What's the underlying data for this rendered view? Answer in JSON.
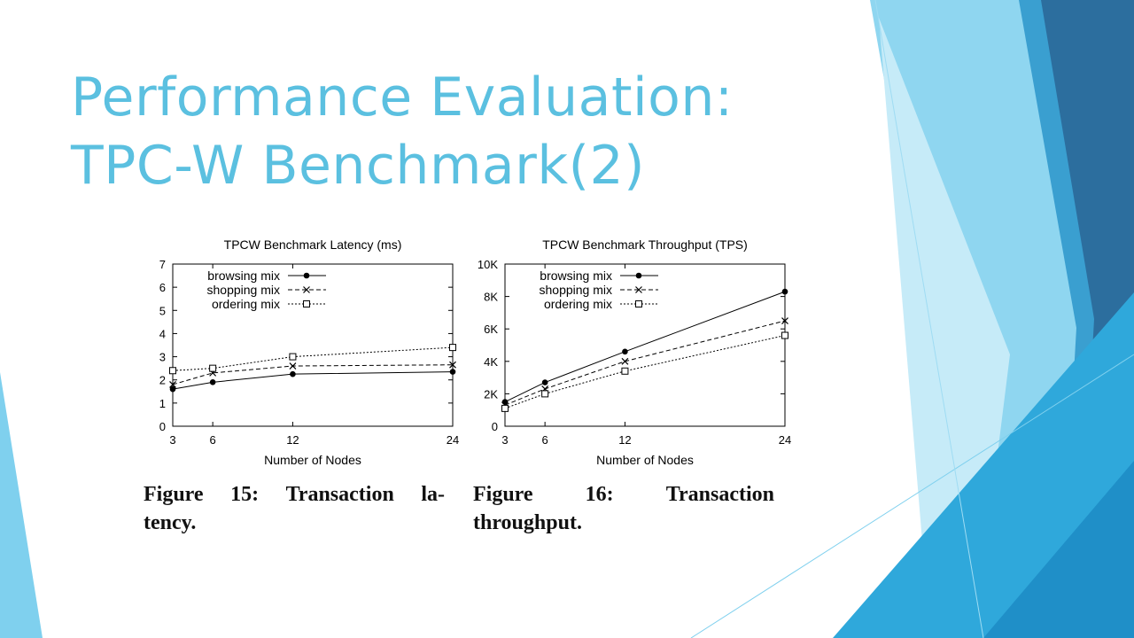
{
  "slide": {
    "title_line1": "Performance Evaluation:",
    "title_line2": "TPC-W Benchmark(2)"
  },
  "colors": {
    "title": "#5bc0e0",
    "accent_light": "#8fd3ef",
    "accent_mid": "#3ab4e6",
    "accent_dark": "#2c6e9e"
  },
  "captions": [
    {
      "line1_words": [
        "Figure",
        "15:",
        "Transaction",
        "la-"
      ],
      "line2": "tency."
    },
    {
      "line1_words": [
        "Figure",
        "16:",
        "Transaction"
      ],
      "line2": "throughput."
    }
  ],
  "chart_data": [
    {
      "type": "line",
      "title": "TPCW Benchmark Latency (ms)",
      "xlabel": "Number of Nodes",
      "ylabel": "",
      "x": [
        3,
        6,
        12,
        24
      ],
      "xticks": [
        "3",
        "6",
        "12",
        "24"
      ],
      "ylim": [
        0,
        7
      ],
      "yticks": [
        "0",
        "1",
        "2",
        "3",
        "4",
        "5",
        "6",
        "7"
      ],
      "grid": false,
      "legend": "top-left",
      "series": [
        {
          "name": "browsing mix",
          "values": [
            1.6,
            1.9,
            2.25,
            2.35
          ],
          "marker": "dot",
          "dash": "solid"
        },
        {
          "name": "shopping mix",
          "values": [
            1.8,
            2.3,
            2.6,
            2.65
          ],
          "marker": "x",
          "dash": "dashed"
        },
        {
          "name": "ordering mix",
          "values": [
            2.4,
            2.5,
            3.0,
            3.4
          ],
          "marker": "square",
          "dash": "dotted"
        }
      ]
    },
    {
      "type": "line",
      "title": "TPCW Benchmark Throughput (TPS)",
      "xlabel": "Number of Nodes",
      "ylabel": "",
      "x": [
        3,
        6,
        12,
        24
      ],
      "xticks": [
        "3",
        "6",
        "12",
        "24"
      ],
      "ylim": [
        0,
        10000
      ],
      "yticks": [
        "0",
        "2K",
        "4K",
        "6K",
        "8K",
        "10K"
      ],
      "grid": false,
      "legend": "top-left",
      "series": [
        {
          "name": "browsing mix",
          "values": [
            1500,
            2700,
            4600,
            8300
          ],
          "marker": "dot",
          "dash": "solid"
        },
        {
          "name": "shopping mix",
          "values": [
            1300,
            2300,
            4000,
            6500
          ],
          "marker": "x",
          "dash": "dashed"
        },
        {
          "name": "ordering mix",
          "values": [
            1100,
            2000,
            3400,
            5600
          ],
          "marker": "square",
          "dash": "dotted"
        }
      ]
    }
  ]
}
